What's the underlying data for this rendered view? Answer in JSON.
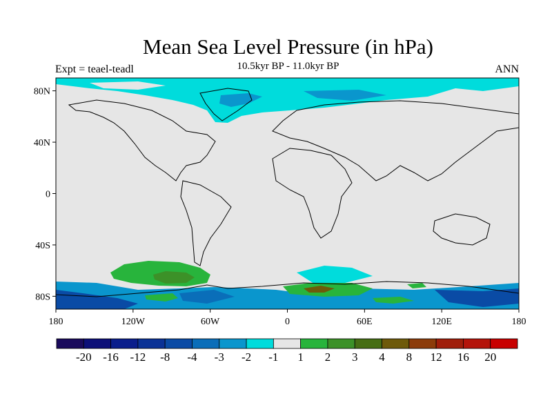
{
  "header": {
    "title": "Mean Sea Level Pressure (in hPa)",
    "subtitle": "10.5kyr BP - 11.0kyr BP",
    "left_label": "Expt = teael-teadl",
    "right_label": "ANN"
  },
  "map": {
    "lon_range": [
      -180,
      180
    ],
    "lat_range": [
      -90,
      90
    ],
    "x_ticks": [
      {
        "lon": -180,
        "label": "180"
      },
      {
        "lon": -120,
        "label": "120W"
      },
      {
        "lon": -60,
        "label": "60W"
      },
      {
        "lon": 0,
        "label": "0"
      },
      {
        "lon": 60,
        "label": "60E"
      },
      {
        "lon": 120,
        "label": "120E"
      },
      {
        "lon": 180,
        "label": "180"
      }
    ],
    "y_ticks": [
      {
        "lat": 80,
        "label": "80N"
      },
      {
        "lat": 40,
        "label": "40N"
      },
      {
        "lat": 0,
        "label": "0"
      },
      {
        "lat": -40,
        "label": "40S"
      },
      {
        "lat": -80,
        "label": "80S"
      }
    ],
    "background_color": "#e6e6e6"
  },
  "colorbar": {
    "labels": [
      "-20",
      "-16",
      "-12",
      "-8",
      "-4",
      "-3",
      "-2",
      "-1",
      "1",
      "2",
      "3",
      "4",
      "8",
      "12",
      "16",
      "20"
    ],
    "colors": [
      "#1a0a5c",
      "#0c0f78",
      "#0a1e8c",
      "#0a3296",
      "#0a4ba5",
      "#0a6eb9",
      "#0a96cd",
      "#00dcdc",
      "#e6e6e6",
      "#28b43c",
      "#3c9128",
      "#466e14",
      "#6e5a0a",
      "#8c3c0a",
      "#a01e0a",
      "#b4140a",
      "#c80000"
    ]
  }
}
